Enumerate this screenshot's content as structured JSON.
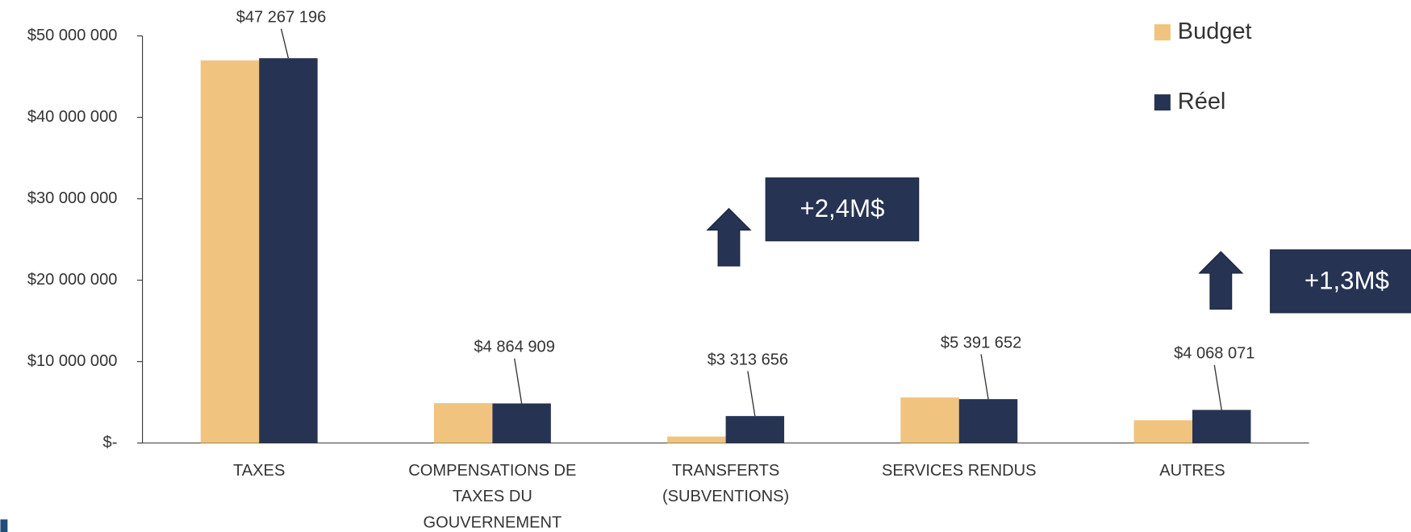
{
  "chart_data": {
    "type": "bar",
    "categories": [
      "TAXES",
      "COMPENSATIONS  DE\nTAXES DU\nGOUVERNEMENT",
      "TRANSFERTS\n(SUBVENTIONS)",
      "SERVICES RENDUS",
      "AUTRES"
    ],
    "series": [
      {
        "name": "Budget",
        "color": "#f0c47f",
        "values": [
          47000000,
          4900000,
          800000,
          5600000,
          2800000
        ]
      },
      {
        "name": "Réel",
        "color": "#263352",
        "values": [
          47267196,
          4864909,
          3313656,
          5391652,
          4068071
        ],
        "value_labels": [
          "$47 267 196",
          "$4 864 909",
          "$3 313 656",
          "$5 391 652",
          "$4 068 071"
        ]
      }
    ],
    "ylim": [
      0,
      50000000
    ],
    "yticks": [
      {
        "value": 0,
        "label": "$-"
      },
      {
        "value": 10000000,
        "label": "$10 000 000"
      },
      {
        "value": 20000000,
        "label": "$20 000 000"
      },
      {
        "value": 30000000,
        "label": "$30 000 000"
      },
      {
        "value": 40000000,
        "label": "$40 000 000"
      },
      {
        "value": 50000000,
        "label": "$50 000 000"
      }
    ],
    "legend": "top-right",
    "annotations": [
      "+2,4M$",
      "+1,3M$"
    ]
  }
}
